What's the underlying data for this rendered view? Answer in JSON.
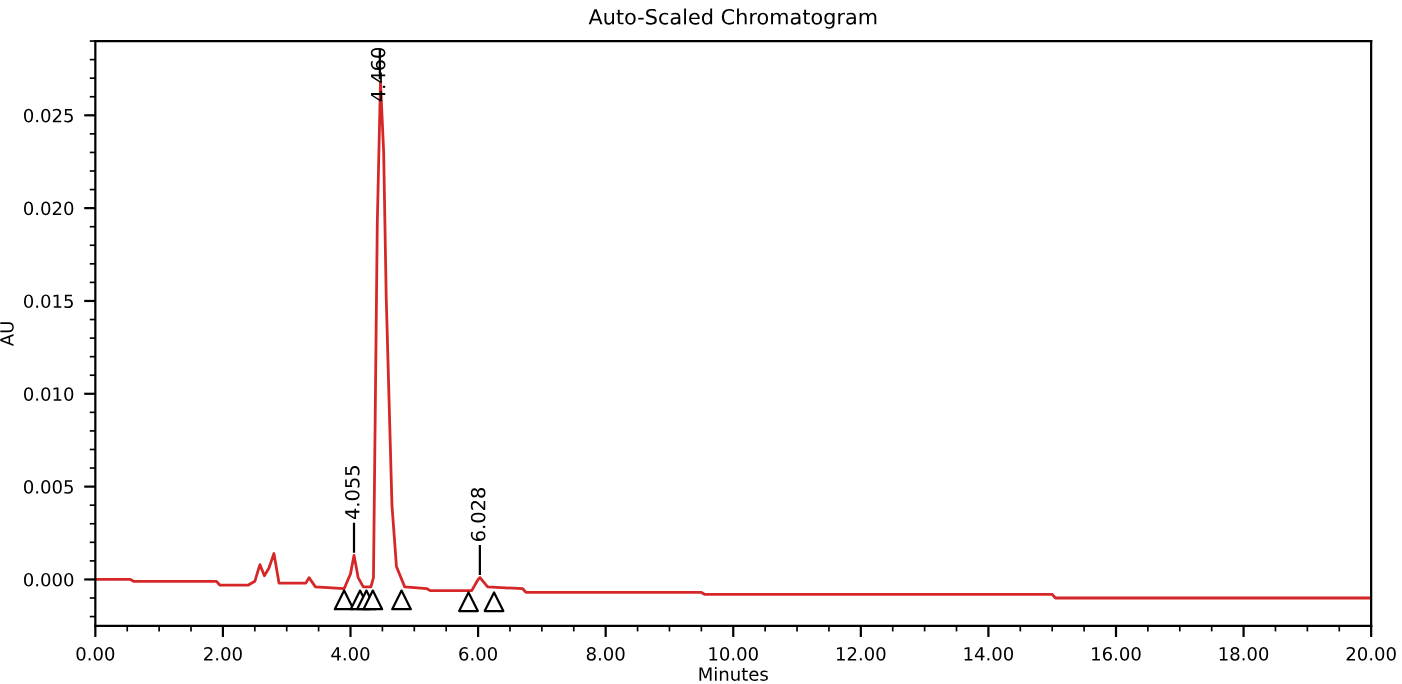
{
  "chart_data": {
    "type": "line",
    "title": "Auto-Scaled Chromatogram",
    "xlabel": "Minutes",
    "ylabel": "AU",
    "xlim": [
      0,
      20
    ],
    "ylim": [
      -0.0025,
      0.029
    ],
    "xticks": [
      {
        "value": 0,
        "label": "0.00"
      },
      {
        "value": 2,
        "label": "2.00"
      },
      {
        "value": 4,
        "label": "4.00"
      },
      {
        "value": 6,
        "label": "6.00"
      },
      {
        "value": 8,
        "label": "8.00"
      },
      {
        "value": 10,
        "label": "10.00"
      },
      {
        "value": 12,
        "label": "12.00"
      },
      {
        "value": 14,
        "label": "14.00"
      },
      {
        "value": 16,
        "label": "16.00"
      },
      {
        "value": 18,
        "label": "18.00"
      },
      {
        "value": 20,
        "label": "20.00"
      }
    ],
    "yticks": [
      {
        "value": 0,
        "label": "0.000"
      },
      {
        "value": 0.005,
        "label": "0.005"
      },
      {
        "value": 0.01,
        "label": "0.010"
      },
      {
        "value": 0.015,
        "label": "0.015"
      },
      {
        "value": 0.02,
        "label": "0.020"
      },
      {
        "value": 0.025,
        "label": "0.025"
      }
    ],
    "grid": false,
    "legend": false,
    "series": [
      {
        "color": "#d62728",
        "line_style": "solid",
        "marker": "none",
        "x": [
          0,
          0.55,
          0.6,
          1.9,
          1.95,
          2.4,
          2.5,
          2.58,
          2.65,
          2.72,
          2.8,
          2.88,
          3.3,
          3.35,
          3.45,
          3.9,
          4.0,
          4.055,
          4.12,
          4.2,
          4.32,
          4.36,
          4.42,
          4.47,
          4.52,
          4.56,
          4.65,
          4.72,
          4.85,
          5.2,
          5.25,
          5.9,
          6.0,
          6.03,
          6.15,
          6.7,
          6.75,
          9.5,
          9.55,
          15.0,
          15.05,
          20
        ],
        "values": [
          0,
          0,
          -0.0001,
          -0.0001,
          -0.0003,
          -0.0003,
          -0.0001,
          0.0008,
          0.0002,
          0.0006,
          0.0014,
          -0.0002,
          -0.0002,
          0.0001,
          -0.0004,
          -0.0005,
          0.0003,
          0.0013,
          0.0001,
          -0.0004,
          -0.0004,
          0.0001,
          0.0192,
          0.0268,
          0.023,
          0.0152,
          0.004,
          0.0007,
          -0.0004,
          -0.0005,
          -0.0006,
          -0.0006,
          0,
          0.0001,
          -0.0004,
          -0.0005,
          -0.0007,
          -0.0007,
          -0.0008,
          -0.0008,
          -0.001,
          -0.001
        ]
      },
      {
        "type": "scatter",
        "color": "#000000",
        "marker": "triangle",
        "x": [
          3.9,
          4.15,
          4.25,
          4.35,
          4.8,
          5.85,
          6.25
        ],
        "values": [
          -0.0011,
          -0.0011,
          -0.0011,
          -0.0011,
          -0.0011,
          -0.0012,
          -0.0012
        ]
      }
    ],
    "annotations": [
      {
        "text": "4.055",
        "x": 4.055,
        "y": 0.0013
      },
      {
        "text": "4.460",
        "x": 4.46,
        "y": 0.0268
      },
      {
        "text": "6.028",
        "x": 6.028,
        "y": 0.0001
      }
    ]
  }
}
